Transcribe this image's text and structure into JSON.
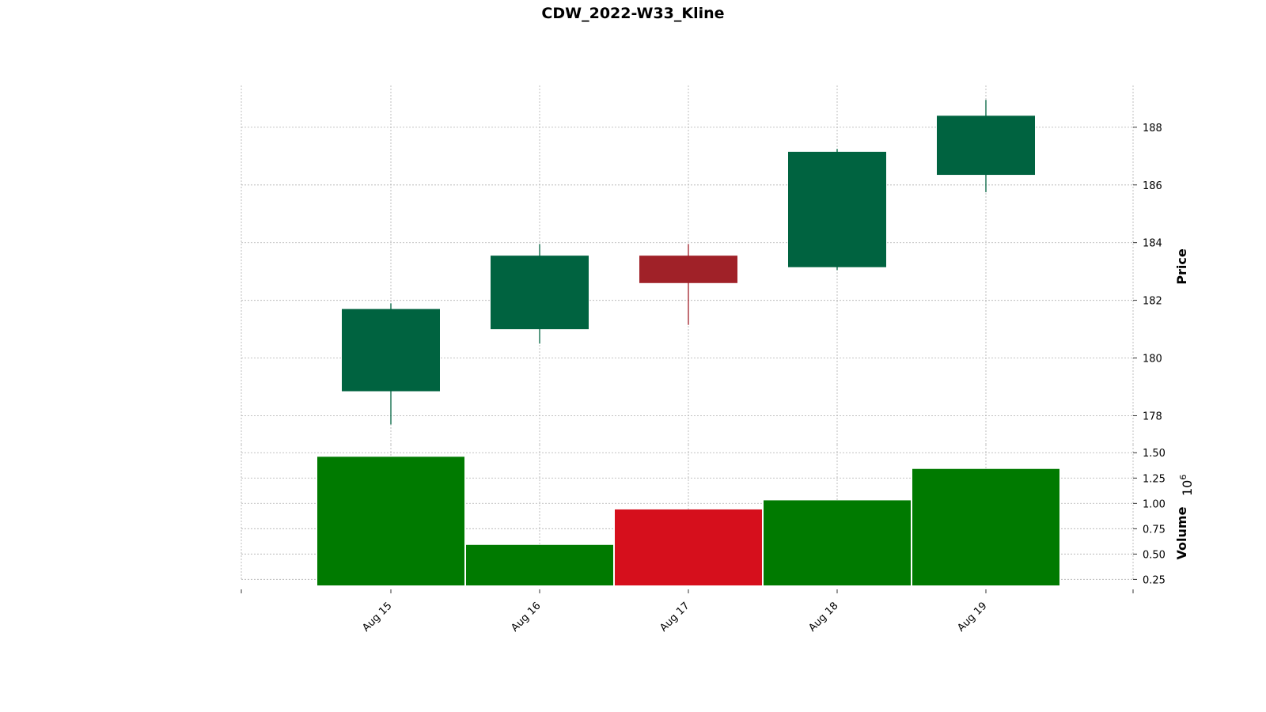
{
  "chart_data": {
    "type": "candlestick",
    "title": "CDW_2022-W33_Kline",
    "categories": [
      "Aug 15",
      "Aug 16",
      "Aug 17",
      "Aug 18",
      "Aug 19"
    ],
    "price_panel": {
      "ylabel": "Price",
      "ylim": [
        177.0,
        189.45
      ],
      "yticks": [
        178,
        180,
        182,
        184,
        186,
        188
      ],
      "ytick_labels": [
        "178",
        "180",
        "182",
        "184",
        "186",
        "188"
      ],
      "ohlc": [
        {
          "open": 178.85,
          "high": 181.9,
          "low": 177.7,
          "close": 181.7
        },
        {
          "open": 181.0,
          "high": 183.95,
          "low": 180.5,
          "close": 183.55
        },
        {
          "open": 183.55,
          "high": 183.95,
          "low": 181.15,
          "close": 182.6
        },
        {
          "open": 183.15,
          "high": 187.25,
          "low": 183.05,
          "close": 187.15
        },
        {
          "open": 186.35,
          "high": 188.95,
          "low": 185.75,
          "close": 188.4
        }
      ]
    },
    "volume_panel": {
      "ylabel": "Volume",
      "scale_label": "10^6",
      "ylim": [
        0.19,
        1.58
      ],
      "yticks": [
        0.25,
        0.5,
        0.75,
        1.0,
        1.25,
        1.5
      ],
      "ytick_labels": [
        "0.25",
        "0.50",
        "0.75",
        "1.00",
        "1.25",
        "1.50"
      ],
      "values": [
        1.46,
        0.59,
        0.94,
        1.03,
        1.34
      ]
    },
    "colors": {
      "up_candle": "#006340",
      "down_candle": "#a02128",
      "up_volume": "#007a00",
      "down_volume": "#d60f1c",
      "grid": "#b0b0b0"
    },
    "grid": true
  }
}
